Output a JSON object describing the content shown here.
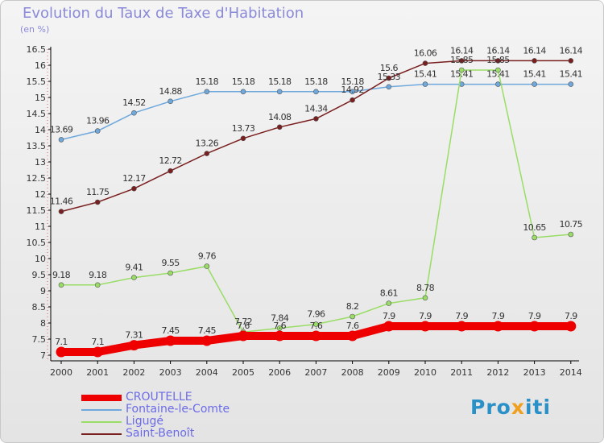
{
  "chart_data": {
    "type": "line",
    "title": "Evolution du Taux de Taxe d'Habitation",
    "unit_label": "(en %)",
    "x": [
      "2000",
      "2001",
      "2002",
      "2003",
      "2004",
      "2005",
      "2006",
      "2007",
      "2008",
      "2009",
      "2010",
      "2011",
      "2012",
      "2013",
      "2014"
    ],
    "ylim": [
      6.9,
      16.5
    ],
    "yticks": [
      "7",
      "7.5",
      "8",
      "8.5",
      "9",
      "9.5",
      "10",
      "10.5",
      "11",
      "11.5",
      "12",
      "12.5",
      "13",
      "13.5",
      "14",
      "14.5",
      "15",
      "15.5",
      "16",
      "16.5"
    ],
    "grid": false,
    "legend_position": "bottom-left",
    "series": [
      {
        "name": "CROUTELLE",
        "color": "#ee0000",
        "values": [
          7.1,
          7.1,
          7.31,
          7.45,
          7.45,
          7.6,
          7.6,
          7.6,
          7.6,
          7.9,
          7.9,
          7.9,
          7.9,
          7.9,
          7.9
        ],
        "labels": [
          "7.1",
          "7.1",
          "7.31",
          "7.45",
          "7.45",
          "7.6",
          "7.6",
          "7.6",
          "7.6",
          "7.9",
          "7.9",
          "7.9",
          "7.9",
          "7.9",
          "7.9"
        ]
      },
      {
        "name": "Fontaine-le-Comte",
        "color": "#6fa8dc",
        "values": [
          13.69,
          13.96,
          14.52,
          14.88,
          15.18,
          15.18,
          15.18,
          15.18,
          15.18,
          15.33,
          15.41,
          15.41,
          15.41,
          15.41,
          15.41
        ],
        "labels": [
          "13.69",
          "13.96",
          "14.52",
          "14.88",
          "15.18",
          "15.18",
          "15.18",
          "15.18",
          "15.18",
          "15.33",
          "15.41",
          "15.41",
          "15.41",
          "15.41",
          "15.41"
        ]
      },
      {
        "name": "Ligugé",
        "color": "#99dd66",
        "values": [
          9.18,
          9.18,
          9.41,
          9.55,
          9.76,
          7.72,
          7.84,
          7.96,
          8.2,
          8.61,
          8.78,
          15.85,
          15.85,
          10.65,
          10.75
        ],
        "labels": [
          "9.18",
          "9.18",
          "9.41",
          "9.55",
          "9.76",
          "7.72",
          "7.84",
          "7.96",
          "8.2",
          "8.61",
          "8.78",
          "15.85",
          "15.85",
          "10.65",
          "10.75"
        ]
      },
      {
        "name": "Saint-Benoît",
        "color": "#7a1f1f",
        "values": [
          11.46,
          11.75,
          12.17,
          12.72,
          13.26,
          13.73,
          14.08,
          14.34,
          14.92,
          15.6,
          16.06,
          16.14,
          16.14,
          16.14,
          16.14
        ],
        "labels": [
          "11.46",
          "11.75",
          "12.17",
          "12.72",
          "13.26",
          "13.73",
          "14.08",
          "14.34",
          "14.92",
          "15.6",
          "16.06",
          "16.14",
          "16.14",
          "16.14",
          "16.14"
        ]
      }
    ]
  },
  "branding": {
    "pro": "Pro",
    "x": "x",
    "iti": "iti"
  }
}
